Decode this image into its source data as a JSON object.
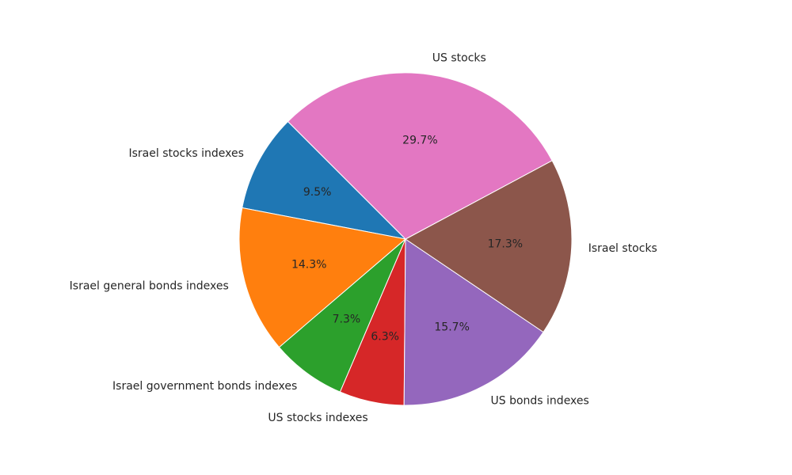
{
  "chart_data": {
    "type": "pie",
    "title": "",
    "start_angle_deg": 135,
    "direction": "counterclockwise",
    "slices": [
      {
        "label": "Israel stocks indexes",
        "value": 9.5,
        "pct_label": "9.5%",
        "color": "#1f77b4"
      },
      {
        "label": "Israel general bonds indexes",
        "value": 14.3,
        "pct_label": "14.3%",
        "color": "#ff7f0e"
      },
      {
        "label": "Israel government bonds indexes",
        "value": 7.3,
        "pct_label": "7.3%",
        "color": "#2ca02c"
      },
      {
        "label": "US stocks indexes",
        "value": 6.3,
        "pct_label": "6.3%",
        "color": "#d62728"
      },
      {
        "label": "US bonds indexes",
        "value": 15.7,
        "pct_label": "15.7%",
        "color": "#9467bd"
      },
      {
        "label": "Israel stocks",
        "value": 17.3,
        "pct_label": "17.3%",
        "color": "#8c564b"
      },
      {
        "label": "US stocks",
        "value": 29.7,
        "pct_label": "29.7%",
        "color": "#e377c2"
      }
    ]
  }
}
